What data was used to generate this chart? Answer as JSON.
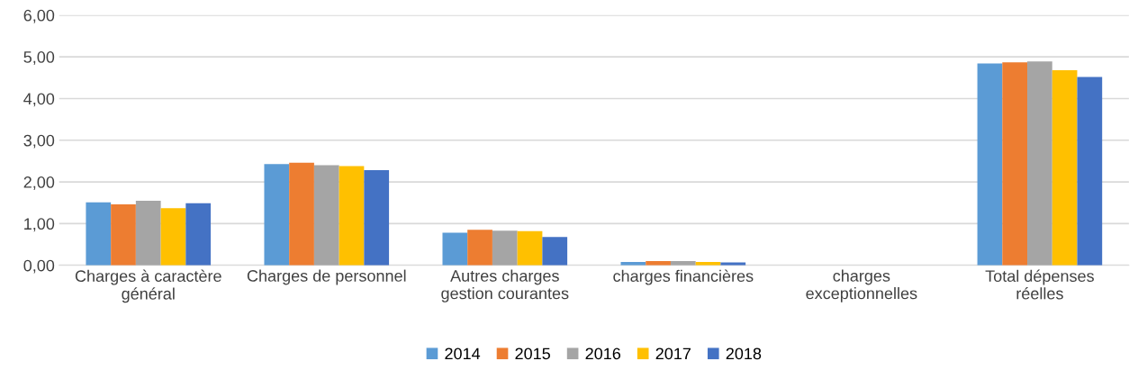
{
  "chart_data": {
    "type": "bar",
    "categories": [
      "Charges à caractère\ngénéral",
      "Charges de personnel",
      "Autres charges\ngestion courantes",
      "charges financières",
      "charges\nexceptionnelles",
      "Total dépenses\nréelles"
    ],
    "series": [
      {
        "name": "2014",
        "color": "#5b9bd5",
        "values": [
          1.51,
          2.43,
          0.78,
          0.08,
          null,
          4.84
        ]
      },
      {
        "name": "2015",
        "color": "#ed7d31",
        "values": [
          1.46,
          2.46,
          0.85,
          0.1,
          0.0,
          4.87
        ]
      },
      {
        "name": "2016",
        "color": "#a5a5a5",
        "values": [
          1.55,
          2.4,
          0.83,
          0.1,
          null,
          4.89
        ]
      },
      {
        "name": "2017",
        "color": "#ffc000",
        "values": [
          1.37,
          2.38,
          0.82,
          0.08,
          null,
          4.68
        ]
      },
      {
        "name": "2018",
        "color": "#4472c4",
        "values": [
          1.49,
          2.28,
          0.68,
          0.07,
          0.0,
          4.52
        ]
      }
    ],
    "ylim": [
      0,
      6
    ],
    "yticks": [
      {
        "value": 0,
        "label": "0,00"
      },
      {
        "value": 1,
        "label": "1,00"
      },
      {
        "value": 2,
        "label": "2,00"
      },
      {
        "value": 3,
        "label": "3,00"
      },
      {
        "value": 4,
        "label": "4,00"
      },
      {
        "value": 5,
        "label": "5,00"
      },
      {
        "value": 6,
        "label": "6,00"
      }
    ],
    "grid": "y",
    "legend": "bottom"
  }
}
